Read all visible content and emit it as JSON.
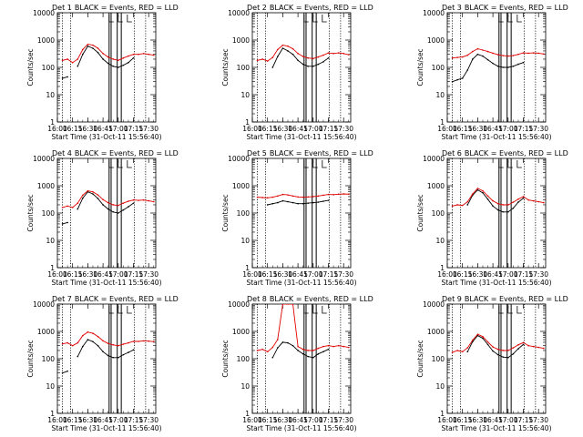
{
  "figure": {
    "ylabel": "Counts/sec",
    "xlabel": "Start Time (31-Oct-11 15:56:40)",
    "legend_text": "BLACK = Events, RED = LLD",
    "colors": {
      "events": "#000000",
      "lld": "#e00000",
      "axes": "#000000",
      "background": "#ffffff"
    }
  },
  "chart_data": [
    {
      "type": "line",
      "title": "Det 1",
      "ylog": true,
      "ylim": [
        1,
        10000
      ],
      "xlim": [
        "16:00",
        "17:37"
      ],
      "xticks": [
        "16:00",
        "16:15",
        "16:30",
        "16:45",
        "17:00",
        "17:15",
        "17:30"
      ],
      "yticks": [
        "1",
        "10",
        "100",
        "1000",
        "10000"
      ],
      "x": [
        "16:05",
        "16:10",
        "16:15",
        "16:20",
        "16:25",
        "16:30",
        "16:35",
        "16:40",
        "16:45",
        "16:50",
        "16:55",
        "17:00",
        "17:05",
        "17:10",
        "17:15",
        "17:20",
        "17:25",
        "17:30",
        "17:35"
      ],
      "series": [
        {
          "name": "Events",
          "color": "#000000",
          "values": [
            40,
            45,
            null,
            110,
            300,
            600,
            500,
            350,
            200,
            140,
            110,
            100,
            120,
            150,
            220,
            null,
            null,
            null,
            null
          ]
        },
        {
          "name": "LLD",
          "color": "#e00000",
          "values": [
            180,
            200,
            150,
            200,
            450,
            700,
            650,
            500,
            320,
            240,
            200,
            180,
            220,
            260,
            300,
            300,
            320,
            300,
            280
          ]
        }
      ],
      "vlines_dotted": [
        "16:05",
        "16:13",
        "17:16",
        "17:27"
      ],
      "vlines_solid": [
        "16:51",
        "16:53",
        "16:59",
        "17:03"
      ],
      "markers": [
        "16:51",
        "17:00",
        "17:09"
      ]
    },
    {
      "type": "line",
      "title": "Det 2",
      "ylog": true,
      "ylim": [
        1,
        10000
      ],
      "xlim": [
        "16:00",
        "17:37"
      ],
      "xticks": [
        "16:00",
        "16:15",
        "16:30",
        "16:45",
        "17:00",
        "17:15",
        "17:30"
      ],
      "yticks": [
        "1",
        "10",
        "100",
        "1000",
        "10000"
      ],
      "x": [
        "16:05",
        "16:10",
        "16:15",
        "16:20",
        "16:25",
        "16:30",
        "16:35",
        "16:40",
        "16:45",
        "16:50",
        "16:55",
        "17:00",
        "17:05",
        "17:10",
        "17:15",
        "17:20",
        "17:25",
        "17:30",
        "17:35"
      ],
      "series": [
        {
          "name": "Events",
          "color": "#000000",
          "values": [
            null,
            null,
            null,
            100,
            250,
            500,
            400,
            300,
            180,
            130,
            110,
            110,
            130,
            160,
            220,
            null,
            null,
            null,
            null
          ]
        },
        {
          "name": "LLD",
          "color": "#e00000",
          "values": [
            180,
            200,
            170,
            230,
            450,
            650,
            600,
            480,
            320,
            250,
            220,
            210,
            240,
            280,
            340,
            320,
            340,
            320,
            290
          ]
        }
      ],
      "vlines_dotted": [
        "16:05",
        "16:13",
        "17:16",
        "17:27"
      ],
      "vlines_solid": [
        "16:51",
        "16:53",
        "16:59",
        "17:03"
      ],
      "markers": [
        "16:51",
        "17:00",
        "17:09"
      ]
    },
    {
      "type": "line",
      "title": "Det 3",
      "ylog": true,
      "ylim": [
        1,
        10000
      ],
      "xlim": [
        "16:00",
        "17:37"
      ],
      "xticks": [
        "16:00",
        "16:15",
        "16:30",
        "16:45",
        "17:00",
        "17:15",
        "17:30"
      ],
      "yticks": [
        "1",
        "10",
        "100",
        "1000",
        "10000"
      ],
      "x": [
        "16:05",
        "16:10",
        "16:15",
        "16:20",
        "16:25",
        "16:30",
        "16:35",
        "16:40",
        "16:45",
        "16:50",
        "16:55",
        "17:00",
        "17:05",
        "17:10",
        "17:15",
        "17:20",
        "17:25",
        "17:30",
        "17:35"
      ],
      "series": [
        {
          "name": "Events",
          "color": "#000000",
          "values": [
            30,
            35,
            40,
            80,
            200,
            300,
            260,
            190,
            140,
            110,
            100,
            100,
            110,
            130,
            150,
            null,
            null,
            null,
            null
          ]
        },
        {
          "name": "LLD",
          "color": "#e00000",
          "values": [
            220,
            230,
            240,
            280,
            380,
            480,
            430,
            380,
            330,
            290,
            270,
            260,
            270,
            300,
            340,
            330,
            340,
            330,
            310
          ]
        }
      ],
      "vlines_dotted": [
        "16:05",
        "16:13",
        "17:16",
        "17:27"
      ],
      "vlines_solid": [
        "16:51",
        "16:53",
        "16:59",
        "17:03"
      ],
      "markers": [
        "16:51",
        "17:00",
        "17:09"
      ]
    },
    {
      "type": "line",
      "title": "Det 4",
      "ylog": true,
      "ylim": [
        1,
        10000
      ],
      "xlim": [
        "16:00",
        "17:37"
      ],
      "xticks": [
        "16:00",
        "16:15",
        "16:30",
        "16:45",
        "17:00",
        "17:15",
        "17:30"
      ],
      "yticks": [
        "1",
        "10",
        "100",
        "1000",
        "10000"
      ],
      "x": [
        "16:05",
        "16:10",
        "16:15",
        "16:20",
        "16:25",
        "16:30",
        "16:35",
        "16:40",
        "16:45",
        "16:50",
        "16:55",
        "17:00",
        "17:05",
        "17:10",
        "17:15",
        "17:20",
        "17:25",
        "17:30",
        "17:35"
      ],
      "series": [
        {
          "name": "Events",
          "color": "#000000",
          "values": [
            40,
            45,
            null,
            140,
            350,
            600,
            500,
            340,
            200,
            140,
            110,
            100,
            130,
            170,
            230,
            null,
            null,
            null,
            null
          ]
        },
        {
          "name": "LLD",
          "color": "#e00000",
          "values": [
            160,
            180,
            160,
            230,
            450,
            650,
            600,
            460,
            310,
            240,
            200,
            190,
            230,
            270,
            300,
            290,
            300,
            280,
            260
          ]
        }
      ],
      "vlines_dotted": [
        "16:05",
        "16:13",
        "17:16",
        "17:27"
      ],
      "vlines_solid": [
        "16:51",
        "16:53",
        "16:59",
        "17:03"
      ],
      "markers": [
        "16:51",
        "17:00",
        "17:09"
      ]
    },
    {
      "type": "line",
      "title": "Det 5",
      "ylog": true,
      "ylim": [
        1,
        10000
      ],
      "xlim": [
        "16:00",
        "17:37"
      ],
      "xticks": [
        "16:00",
        "16:15",
        "16:30",
        "16:45",
        "17:00",
        "17:15",
        "17:30"
      ],
      "yticks": [
        "1",
        "10",
        "100",
        "1000",
        "10000"
      ],
      "x": [
        "16:05",
        "16:10",
        "16:15",
        "16:20",
        "16:25",
        "16:30",
        "16:35",
        "16:40",
        "16:45",
        "16:50",
        "16:55",
        "17:00",
        "17:05",
        "17:10",
        "17:15",
        "17:20",
        "17:25",
        "17:30",
        "17:35"
      ],
      "series": [
        {
          "name": "Events",
          "color": "#000000",
          "values": [
            null,
            null,
            200,
            220,
            240,
            280,
            260,
            240,
            220,
            220,
            230,
            240,
            250,
            270,
            290,
            null,
            null,
            null,
            null
          ]
        },
        {
          "name": "LLD",
          "color": "#e00000",
          "values": [
            380,
            370,
            360,
            380,
            420,
            480,
            460,
            420,
            390,
            380,
            390,
            400,
            420,
            450,
            480,
            470,
            490,
            500,
            490
          ]
        }
      ],
      "vlines_dotted": [
        "16:05",
        "16:13",
        "17:16",
        "17:27"
      ],
      "vlines_solid": [
        "16:51",
        "16:53",
        "16:59",
        "17:03"
      ],
      "markers": [
        "16:51",
        "17:00",
        "17:09"
      ]
    },
    {
      "type": "line",
      "title": "Det 6",
      "ylog": true,
      "ylim": [
        1,
        10000
      ],
      "xlim": [
        "16:00",
        "17:37"
      ],
      "xticks": [
        "16:00",
        "16:15",
        "16:30",
        "16:45",
        "17:00",
        "17:15",
        "17:30"
      ],
      "yticks": [
        "1",
        "10",
        "100",
        "1000",
        "10000"
      ],
      "x": [
        "16:05",
        "16:10",
        "16:15",
        "16:20",
        "16:25",
        "16:30",
        "16:35",
        "16:40",
        "16:45",
        "16:50",
        "16:55",
        "17:00",
        "17:05",
        "17:10",
        "17:15",
        "17:20",
        "17:25",
        "17:30",
        "17:35"
      ],
      "series": [
        {
          "name": "Events",
          "color": "#000000",
          "values": [
            null,
            null,
            null,
            200,
            450,
            700,
            550,
            320,
            180,
            130,
            110,
            110,
            150,
            250,
            350,
            null,
            null,
            null,
            null
          ]
        },
        {
          "name": "LLD",
          "color": "#e00000",
          "values": [
            180,
            200,
            190,
            260,
            500,
            800,
            650,
            420,
            280,
            220,
            200,
            200,
            250,
            320,
            400,
            300,
            280,
            260,
            240
          ]
        }
      ],
      "vlines_dotted": [
        "16:05",
        "16:13",
        "17:16",
        "17:27"
      ],
      "vlines_solid": [
        "16:51",
        "16:53",
        "16:59",
        "17:03"
      ],
      "markers": [
        "16:51",
        "17:00",
        "17:09"
      ]
    },
    {
      "type": "line",
      "title": "Det 7",
      "ylog": true,
      "ylim": [
        1,
        10000
      ],
      "xlim": [
        "16:00",
        "17:37"
      ],
      "xticks": [
        "16:00",
        "16:15",
        "16:30",
        "16:45",
        "17:00",
        "17:15",
        "17:30"
      ],
      "yticks": [
        "1",
        "10",
        "100",
        "1000",
        "10000"
      ],
      "x": [
        "16:05",
        "16:10",
        "16:15",
        "16:20",
        "16:25",
        "16:30",
        "16:35",
        "16:40",
        "16:45",
        "16:50",
        "16:55",
        "17:00",
        "17:05",
        "17:10",
        "17:15",
        "17:20",
        "17:25",
        "17:30",
        "17:35"
      ],
      "series": [
        {
          "name": "Events",
          "color": "#000000",
          "values": [
            30,
            35,
            null,
            120,
            280,
            500,
            420,
            300,
            180,
            130,
            110,
            110,
            140,
            170,
            210,
            null,
            null,
            null,
            null
          ]
        },
        {
          "name": "LLD",
          "color": "#e00000",
          "values": [
            350,
            380,
            300,
            380,
            700,
            950,
            850,
            650,
            450,
            360,
            320,
            300,
            340,
            380,
            430,
            430,
            450,
            440,
            420
          ]
        }
      ],
      "vlines_dotted": [
        "16:05",
        "16:13",
        "17:16",
        "17:27"
      ],
      "vlines_solid": [
        "16:51",
        "16:53",
        "16:59",
        "17:03"
      ],
      "markers": [
        "16:51",
        "17:00",
        "17:09"
      ]
    },
    {
      "type": "line",
      "title": "Det 8",
      "ylog": true,
      "ylim": [
        1,
        10000
      ],
      "xlim": [
        "16:00",
        "17:37"
      ],
      "xticks": [
        "16:00",
        "16:15",
        "16:30",
        "16:45",
        "17:00",
        "17:15",
        "17:30"
      ],
      "yticks": [
        "1",
        "10",
        "100",
        "1000",
        "10000"
      ],
      "x": [
        "16:05",
        "16:10",
        "16:15",
        "16:20",
        "16:25",
        "16:30",
        "16:35",
        "16:40",
        "16:45",
        "16:50",
        "16:55",
        "17:00",
        "17:05",
        "17:10",
        "17:15",
        "17:20",
        "17:25",
        "17:30",
        "17:35"
      ],
      "series": [
        {
          "name": "Events",
          "color": "#000000",
          "values": [
            null,
            null,
            null,
            110,
            250,
            400,
            380,
            300,
            200,
            150,
            120,
            110,
            150,
            180,
            220,
            null,
            null,
            null,
            null
          ]
        },
        {
          "name": "LLD",
          "color": "#e00000",
          "values": [
            200,
            220,
            180,
            260,
            500,
            10000,
            10000,
            10000,
            280,
            220,
            200,
            200,
            240,
            280,
            300,
            280,
            300,
            280,
            260
          ]
        }
      ],
      "vlines_dotted": [
        "16:05",
        "16:13",
        "17:16",
        "17:27"
      ],
      "vlines_solid": [
        "16:51",
        "16:53",
        "16:59",
        "17:03"
      ],
      "markers": [
        "16:51",
        "17:00",
        "17:09"
      ]
    },
    {
      "type": "line",
      "title": "Det 9",
      "ylog": true,
      "ylim": [
        1,
        10000
      ],
      "xlim": [
        "16:00",
        "17:37"
      ],
      "xticks": [
        "16:00",
        "16:15",
        "16:30",
        "16:45",
        "17:00",
        "17:15",
        "17:30"
      ],
      "yticks": [
        "1",
        "10",
        "100",
        "1000",
        "10000"
      ],
      "x": [
        "16:05",
        "16:10",
        "16:15",
        "16:20",
        "16:25",
        "16:30",
        "16:35",
        "16:40",
        "16:45",
        "16:50",
        "16:55",
        "17:00",
        "17:05",
        "17:10",
        "17:15",
        "17:20",
        "17:25",
        "17:30",
        "17:35"
      ],
      "series": [
        {
          "name": "Events",
          "color": "#000000",
          "values": [
            null,
            null,
            null,
            180,
            420,
            700,
            560,
            330,
            190,
            140,
            115,
            110,
            150,
            230,
            330,
            null,
            null,
            null,
            null
          ]
        },
        {
          "name": "LLD",
          "color": "#e00000",
          "values": [
            170,
            200,
            180,
            250,
            480,
            780,
            640,
            410,
            270,
            220,
            200,
            200,
            250,
            320,
            390,
            300,
            280,
            260,
            240
          ]
        }
      ],
      "vlines_dotted": [
        "16:05",
        "16:13",
        "17:16",
        "17:27"
      ],
      "vlines_solid": [
        "16:51",
        "16:53",
        "16:59",
        "17:03"
      ],
      "markers": [
        "16:51",
        "17:00",
        "17:09"
      ]
    }
  ]
}
